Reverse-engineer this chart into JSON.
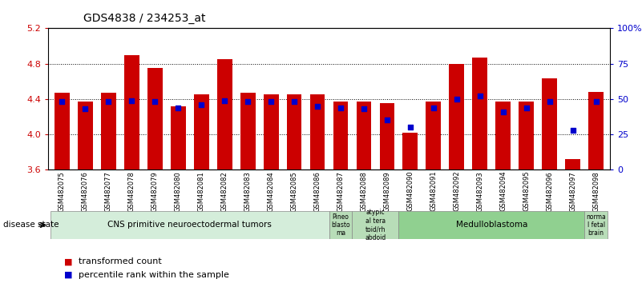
{
  "title": "GDS4838 / 234253_at",
  "samples": [
    "GSM482075",
    "GSM482076",
    "GSM482077",
    "GSM482078",
    "GSM482079",
    "GSM482080",
    "GSM482081",
    "GSM482082",
    "GSM482083",
    "GSM482084",
    "GSM482085",
    "GSM482086",
    "GSM482087",
    "GSM482088",
    "GSM482089",
    "GSM482090",
    "GSM482091",
    "GSM482092",
    "GSM482093",
    "GSM482094",
    "GSM482095",
    "GSM482096",
    "GSM482097",
    "GSM482098"
  ],
  "transformed_count": [
    4.47,
    4.37,
    4.47,
    4.9,
    4.75,
    4.32,
    4.45,
    4.85,
    4.47,
    4.45,
    4.45,
    4.45,
    4.37,
    4.37,
    4.35,
    4.02,
    4.37,
    4.8,
    4.87,
    4.37,
    4.37,
    4.63,
    3.72,
    4.48
  ],
  "percentile_rank": [
    48,
    43,
    48,
    49,
    48,
    44,
    46,
    49,
    48,
    48,
    48,
    45,
    44,
    43,
    35,
    30,
    44,
    50,
    52,
    41,
    44,
    48,
    28,
    48
  ],
  "ylim": [
    3.6,
    5.2
  ],
  "yticks": [
    3.6,
    4.0,
    4.4,
    4.8,
    5.2
  ],
  "bar_color": "#cc0000",
  "dot_color": "#0000cc",
  "percentile_ylim": [
    0,
    100
  ],
  "percentile_yticks": [
    0,
    25,
    50,
    75,
    100
  ],
  "percentile_yticklabels": [
    "0",
    "25",
    "50",
    "75",
    "100%"
  ],
  "disease_groups": [
    {
      "label": "CNS primitive neuroectodermal tumors",
      "start": 0,
      "end": 12,
      "color": "#d4edda"
    },
    {
      "label": "Pineo\nblasto\nma",
      "start": 12,
      "end": 13,
      "color": "#b8ddb8"
    },
    {
      "label": "atypic\nal tera\ntoid/rh\nabdoid",
      "start": 13,
      "end": 15,
      "color": "#b8ddb8"
    },
    {
      "label": "Medulloblastoma",
      "start": 15,
      "end": 23,
      "color": "#90d090"
    },
    {
      "label": "norma\nl fetal\nbrain",
      "start": 23,
      "end": 24,
      "color": "#b8ddb8"
    }
  ],
  "disease_state_label": "disease state",
  "legend_bar_label": "transformed count",
  "legend_dot_label": "percentile rank within the sample",
  "bg_color": "#ffffff",
  "tick_label_color_left": "#cc0000",
  "tick_label_color_right": "#0000cc",
  "base_value": 3.6,
  "dot_size": 18,
  "bar_width": 0.65,
  "grid_yticks": [
    4.0,
    4.4,
    4.8
  ]
}
